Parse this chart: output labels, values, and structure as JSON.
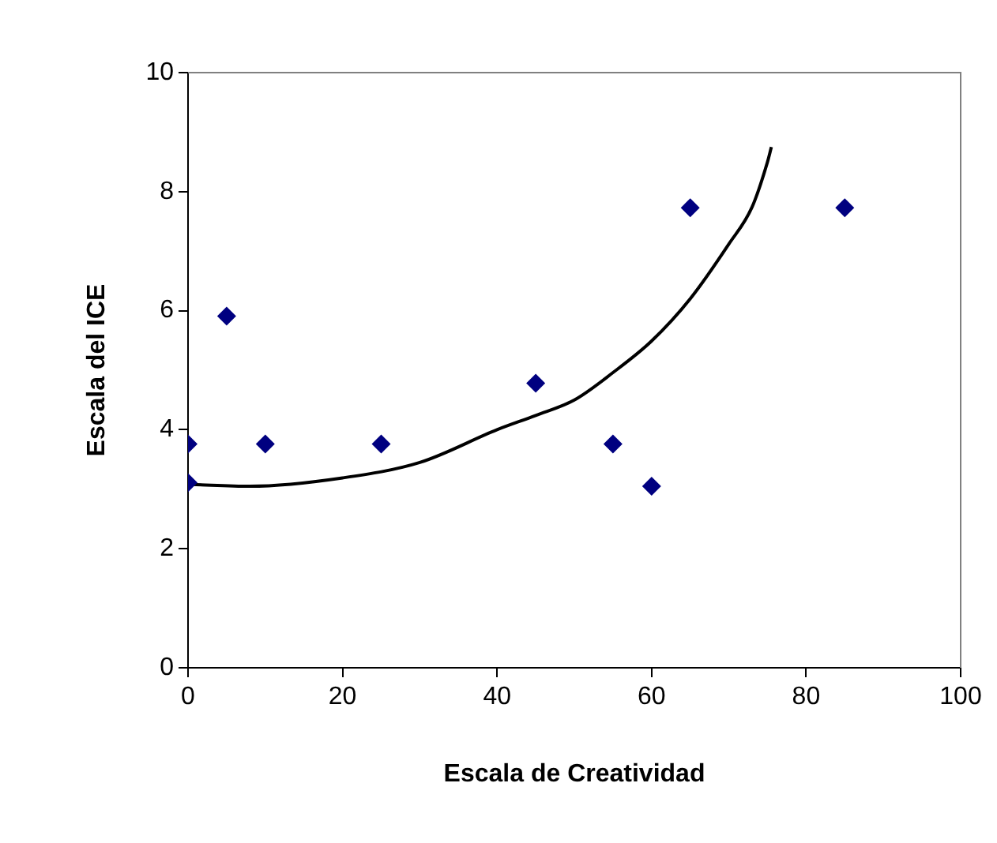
{
  "chart_data": {
    "type": "scatter",
    "xlabel": "Escala de Creatividad",
    "ylabel": "Escala del ICE",
    "xlim": [
      0,
      100
    ],
    "xticks": [
      0,
      20,
      40,
      60,
      80,
      100
    ],
    "ylim": [
      0,
      10
    ],
    "yticks": [
      0,
      2,
      4,
      6,
      8,
      10
    ],
    "grid": false,
    "legend": false,
    "series": [
      {
        "color": "#000080",
        "marker": "diamond",
        "x": [
          0,
          0,
          5,
          10,
          25,
          45,
          55,
          60,
          65,
          85
        ],
        "values": [
          3.76,
          3.11,
          5.91,
          3.76,
          3.76,
          4.78,
          3.76,
          3.05,
          7.73,
          7.73
        ]
      },
      {
        "type": "line",
        "color": "#000000",
        "marker": "none",
        "line_style": "solid",
        "x": [
          0.5,
          8,
          20,
          30,
          40,
          45,
          50,
          55,
          60,
          65,
          70,
          73,
          75,
          75.5
        ],
        "values": [
          3.08,
          3.05,
          3.19,
          3.45,
          4.0,
          4.24,
          4.5,
          4.96,
          5.49,
          6.2,
          7.12,
          7.74,
          8.5,
          8.75
        ]
      }
    ]
  }
}
